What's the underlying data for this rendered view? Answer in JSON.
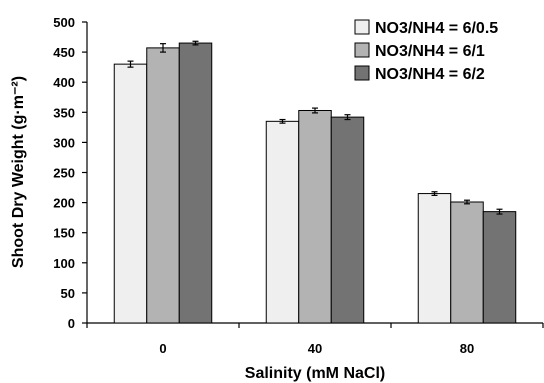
{
  "chart_data": {
    "type": "bar",
    "xlabel": "Salinity (mM NaCl)",
    "ylabel": "Shoot Dry Weight (g·m⁻²)",
    "ylim": [
      0,
      500
    ],
    "yticks": [
      0,
      50,
      100,
      150,
      200,
      250,
      300,
      350,
      400,
      450,
      500
    ],
    "grid": false,
    "legend_position": "top-right",
    "categories": [
      "0",
      "40",
      "80"
    ],
    "series": [
      {
        "name": "NO3/NH4 = 6/0.5",
        "color": "#efefef",
        "values": [
          430,
          335,
          215
        ],
        "errors": [
          5,
          3,
          3
        ]
      },
      {
        "name": "NO3/NH4 = 6/1",
        "color": "#b3b3b3",
        "values": [
          457,
          353,
          201
        ],
        "errors": [
          7,
          4,
          3
        ]
      },
      {
        "name": "NO3/NH4 = 6/2",
        "color": "#737373",
        "values": [
          465,
          342,
          185
        ],
        "errors": [
          3,
          4,
          4
        ]
      }
    ]
  }
}
